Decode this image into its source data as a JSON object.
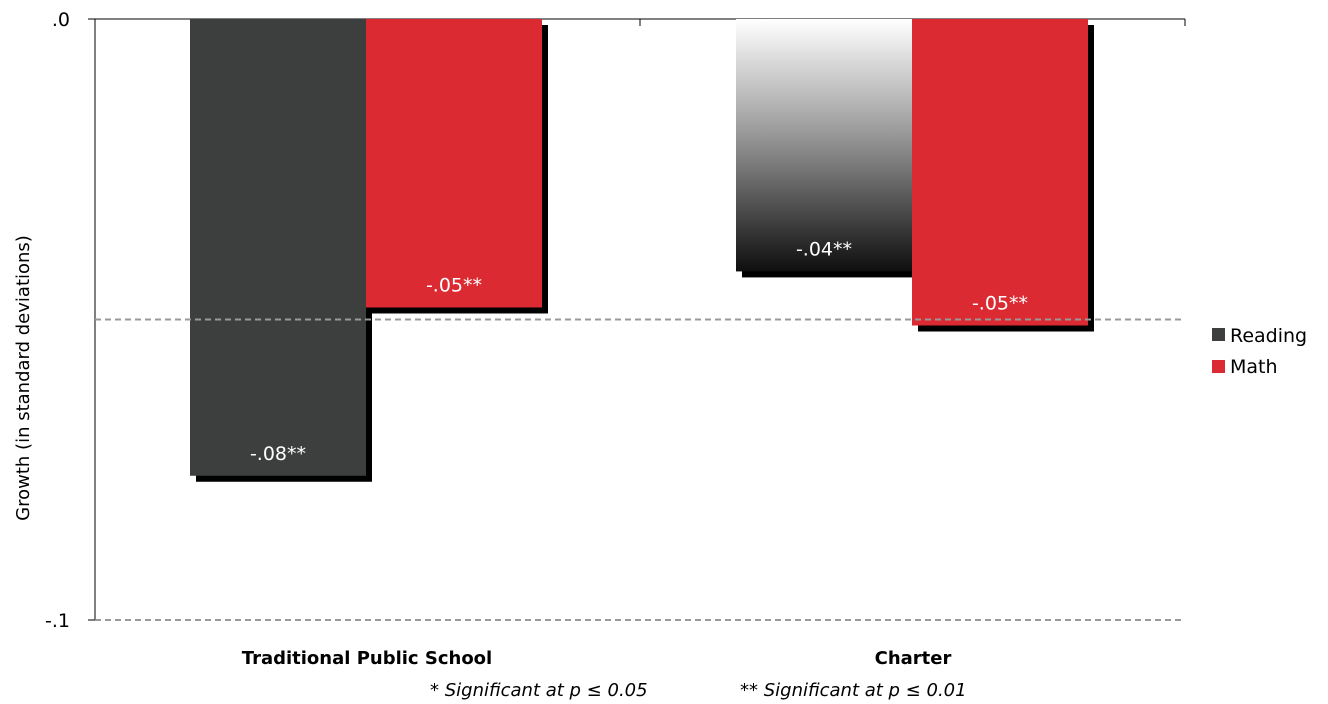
{
  "chart_data": {
    "type": "bar",
    "categories": [
      "Traditional Public School",
      "Charter"
    ],
    "series": [
      {
        "name": "Reading",
        "values": [
          -0.076,
          -0.042
        ],
        "labels": [
          "-.08**",
          "-.04**"
        ]
      },
      {
        "name": "Math",
        "values": [
          -0.048,
          -0.051
        ],
        "labels": [
          "-.05**",
          "-.05**"
        ]
      }
    ],
    "ylabel": "Growth (in standard deviations)",
    "ylim": [
      -0.1,
      0.0
    ],
    "yticks": [
      ".0",
      "-.1"
    ],
    "gridlines": [
      -0.05,
      -0.1
    ],
    "legend_position": "right",
    "footnotes": [
      "* Significant at p ≤ 0.05",
      "** Significant at p ≤ 0.01"
    ]
  },
  "colors": {
    "reading": "#3d3f3f",
    "math": "#dc2a33",
    "shadow": "#000000",
    "grid": "#999999"
  }
}
